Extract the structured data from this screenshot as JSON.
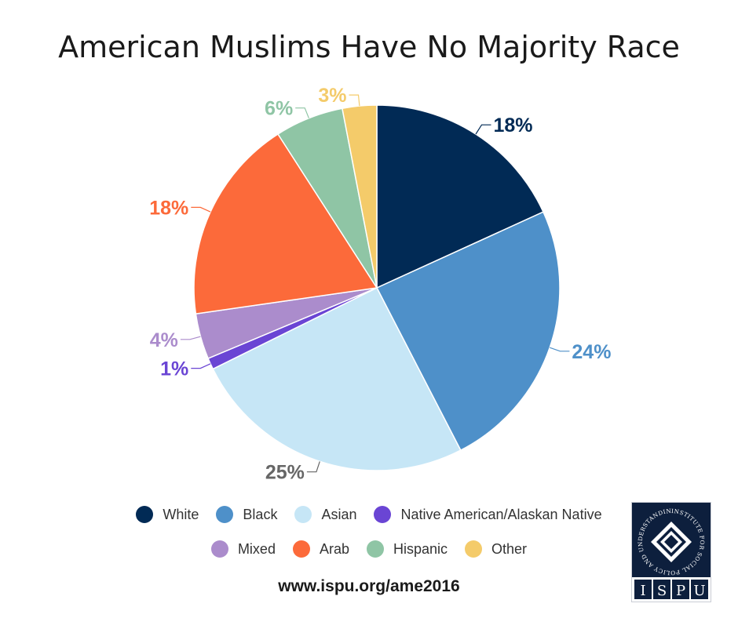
{
  "title": "American Muslims Have No Majority Race",
  "chart_data": {
    "type": "pie",
    "title": "American Muslims Have No Majority Race",
    "slices": [
      {
        "label": "White",
        "value": 18,
        "display": "18%",
        "color": "#012a55",
        "label_color": "#012a55"
      },
      {
        "label": "Black",
        "value": 24,
        "display": "24%",
        "color": "#4e90c9",
        "label_color": "#4e90c9"
      },
      {
        "label": "Asian",
        "value": 25,
        "display": "25%",
        "color": "#c6e6f6",
        "label_color": "#666666"
      },
      {
        "label": "Native American/Alaskan Native",
        "value": 1,
        "display": "1%",
        "color": "#6a45d4",
        "label_color": "#6a45d4"
      },
      {
        "label": "Mixed",
        "value": 4,
        "display": "4%",
        "color": "#ab8ccc",
        "label_color": "#ab8ccc"
      },
      {
        "label": "Arab",
        "value": 18,
        "display": "18%",
        "color": "#fc6a3a",
        "label_color": "#fc6a3a"
      },
      {
        "label": "Hispanic",
        "value": 6,
        "display": "6%",
        "color": "#8fc5a5",
        "label_color": "#8fc5a5"
      },
      {
        "label": "Other",
        "value": 3,
        "display": "3%",
        "color": "#f4cb6a",
        "label_color": "#f4cb6a"
      }
    ],
    "start_angle": "12 o'clock",
    "direction": "clockwise",
    "legend_position": "bottom"
  },
  "legend": {
    "row1": [
      {
        "label": "White",
        "color": "#012a55"
      },
      {
        "label": "Black",
        "color": "#4e90c9"
      },
      {
        "label": "Asian",
        "color": "#c6e6f6"
      },
      {
        "label": "Native American/Alaskan Native",
        "color": "#6a45d4"
      }
    ],
    "row2": [
      {
        "label": "Mixed",
        "color": "#ab8ccc"
      },
      {
        "label": "Arab",
        "color": "#fc6a3a"
      },
      {
        "label": "Hispanic",
        "color": "#8fc5a5"
      },
      {
        "label": "Other",
        "color": "#f4cb6a"
      }
    ]
  },
  "footer": {
    "url": "www.ispu.org/ame2016"
  },
  "logo": {
    "text": "INSTITUTE FOR SOCIAL POLICY AND UNDERSTANDING",
    "letters": [
      "I",
      "S",
      "P",
      "U"
    ]
  }
}
